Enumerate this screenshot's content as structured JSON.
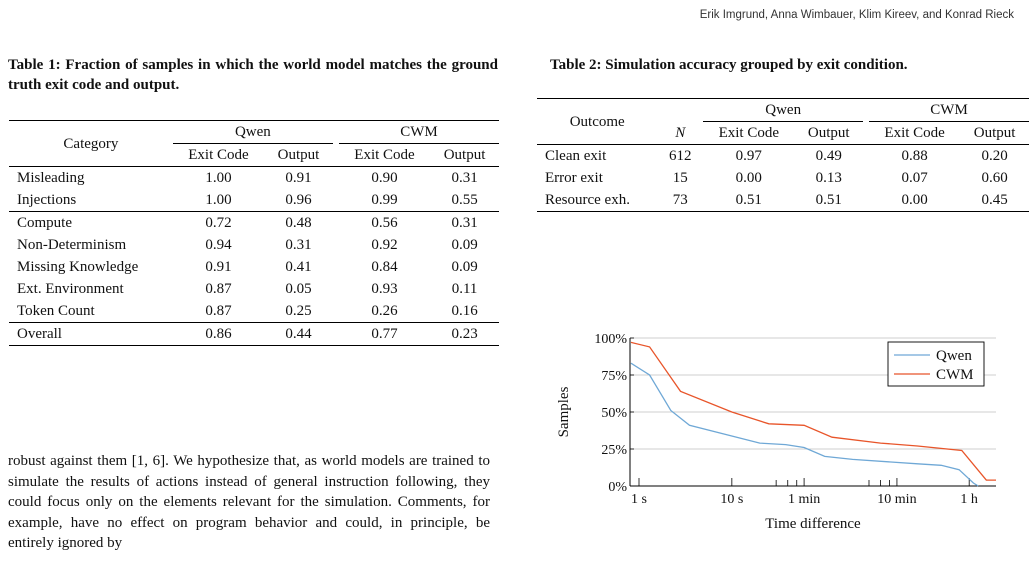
{
  "header": {
    "authors": "Erik Imgrund, Anna Wimbauer, Klim Kireev, and Konrad Rieck"
  },
  "table1": {
    "caption": "Table 1: Fraction of samples in which the world model matches the ground truth exit code and output.",
    "col_category": "Category",
    "group_qwen": "Qwen",
    "group_cwm": "CWM",
    "sub_exit": "Exit Code",
    "sub_output": "Output",
    "rows": [
      {
        "category": "Misleading",
        "q_exit": "1.00",
        "q_out": "0.91",
        "c_exit": "0.90",
        "c_out": "0.31"
      },
      {
        "category": "Injections",
        "q_exit": "1.00",
        "q_out": "0.96",
        "c_exit": "0.99",
        "c_out": "0.55"
      },
      {
        "category": "Compute",
        "q_exit": "0.72",
        "q_out": "0.48",
        "c_exit": "0.56",
        "c_out": "0.31"
      },
      {
        "category": "Non-Determinism",
        "q_exit": "0.94",
        "q_out": "0.31",
        "c_exit": "0.92",
        "c_out": "0.09"
      },
      {
        "category": "Missing Knowledge",
        "q_exit": "0.91",
        "q_out": "0.41",
        "c_exit": "0.84",
        "c_out": "0.09"
      },
      {
        "category": "Ext. Environment",
        "q_exit": "0.87",
        "q_out": "0.05",
        "c_exit": "0.93",
        "c_out": "0.11"
      },
      {
        "category": "Token Count",
        "q_exit": "0.87",
        "q_out": "0.25",
        "c_exit": "0.26",
        "c_out": "0.16"
      },
      {
        "category": "Overall",
        "q_exit": "0.86",
        "q_out": "0.44",
        "c_exit": "0.77",
        "c_out": "0.23"
      }
    ]
  },
  "table2": {
    "caption": "Table 2: Simulation accuracy grouped by exit condition.",
    "col_outcome": "Outcome",
    "col_n": "N",
    "group_qwen": "Qwen",
    "group_cwm": "CWM",
    "sub_exit": "Exit Code",
    "sub_output": "Output",
    "rows": [
      {
        "outcome": "Clean exit",
        "n": "612",
        "q_exit": "0.97",
        "q_out": "0.49",
        "c_exit": "0.88",
        "c_out": "0.20"
      },
      {
        "outcome": "Error exit",
        "n": "15",
        "q_exit": "0.00",
        "q_out": "0.13",
        "c_exit": "0.07",
        "c_out": "0.60"
      },
      {
        "outcome": "Resource exh.",
        "n": "73",
        "q_exit": "0.51",
        "q_out": "0.51",
        "c_exit": "0.00",
        "c_out": "0.45"
      }
    ]
  },
  "body": {
    "text": "robust against them [1, 6]. We hypothesize that, as world models are trained to simulate the results of actions instead of general instruction following, they could focus only on the elements relevant for the simulation. Comments, for example, have no effect on program behavior and could, in principle, be entirely ignored by"
  },
  "chart_data": {
    "type": "line",
    "xlabel": "Time difference",
    "ylabel": "Samples",
    "x_scale": "log",
    "x_unit": "seconds",
    "xlim": [
      0.8,
      7000
    ],
    "ylim": [
      0,
      100
    ],
    "x_ticks": [
      {
        "value": 1,
        "label": "1 s"
      },
      {
        "value": 10,
        "label": "10 s"
      },
      {
        "value": 60,
        "label": "1 min"
      },
      {
        "value": 600,
        "label": "10 min"
      },
      {
        "value": 3600,
        "label": "1 h"
      }
    ],
    "x_minor_ticks": [
      30,
      40,
      50,
      300,
      400,
      500
    ],
    "y_ticks": [
      {
        "value": 0,
        "label": "0%"
      },
      {
        "value": 25,
        "label": "25%"
      },
      {
        "value": 50,
        "label": "50%"
      },
      {
        "value": 75,
        "label": "75%"
      },
      {
        "value": 100,
        "label": "100%"
      }
    ],
    "grid": "horizontal",
    "legend": "top-right",
    "series": [
      {
        "name": "Qwen",
        "color": "#6fa8d6",
        "points": [
          [
            0.82,
            83
          ],
          [
            1.3,
            75
          ],
          [
            2.2,
            51
          ],
          [
            3.5,
            41
          ],
          [
            20,
            29
          ],
          [
            38,
            28
          ],
          [
            60,
            26
          ],
          [
            100,
            20
          ],
          [
            200,
            18
          ],
          [
            1000,
            15
          ],
          [
            1800,
            14
          ],
          [
            2800,
            11
          ],
          [
            4000,
            2
          ],
          [
            4500,
            0
          ]
        ]
      },
      {
        "name": "CWM",
        "color": "#e8552a",
        "points": [
          [
            0.82,
            97
          ],
          [
            1.3,
            94
          ],
          [
            2.8,
            64
          ],
          [
            10,
            50
          ],
          [
            25,
            42
          ],
          [
            60,
            41
          ],
          [
            120,
            33
          ],
          [
            400,
            29
          ],
          [
            1000,
            27
          ],
          [
            3000,
            24
          ],
          [
            5500,
            4
          ],
          [
            7000,
            4
          ]
        ]
      }
    ]
  }
}
